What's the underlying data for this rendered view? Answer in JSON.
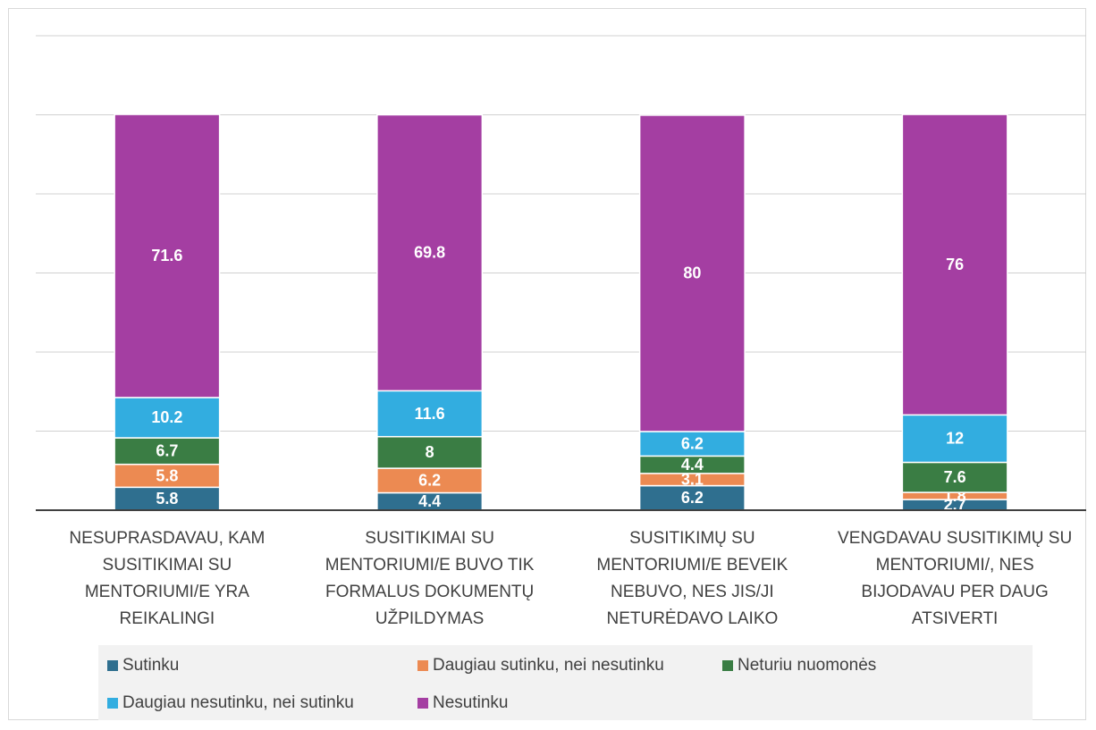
{
  "chart_data": {
    "type": "stacked_bar",
    "categories": [
      "NESUPRASDAVAU, KAM SUSITIKIMAI SU MENTORIUMI/E YRA REIKALINGI",
      "SUSITIKIMAI SU MENTORIUMI/E BUVO TIK FORMALUS DOKUMENTŲ UŽPILDYMAS",
      "SUSITIKIMŲ SU MENTORIUMI/E BEVEIK NEBUVO, NES JIS/JI NETURĖDAVO LAIKO",
      "VENGDAVAU SUSITIKIMŲ SU MENTORIUMI/, NES BIJODAVAU PER DAUG ATSIVERTI"
    ],
    "series": [
      {
        "name": "Sutinku",
        "color": "#2f6f8f",
        "values": [
          5.8,
          4.4,
          6.2,
          2.7
        ]
      },
      {
        "name": "Daugiau sutinku, nei nesutinku",
        "color": "#ec8a52",
        "values": [
          5.8,
          6.2,
          3.1,
          1.8
        ]
      },
      {
        "name": "Neturiu nuomonės",
        "color": "#3a7d44",
        "values": [
          6.7,
          8,
          4.4,
          7.6
        ]
      },
      {
        "name": "Daugiau nesutinku, nei sutinku",
        "color": "#32ade0",
        "values": [
          10.2,
          11.6,
          6.2,
          12
        ]
      },
      {
        "name": "Nesutinku",
        "color": "#a43ea2",
        "values": [
          71.6,
          69.8,
          80,
          76
        ]
      }
    ],
    "ylim": [
      0,
      120
    ],
    "yticks": [
      0,
      20,
      40,
      60,
      80,
      100,
      120
    ],
    "grid": true,
    "legend": "bottom"
  }
}
